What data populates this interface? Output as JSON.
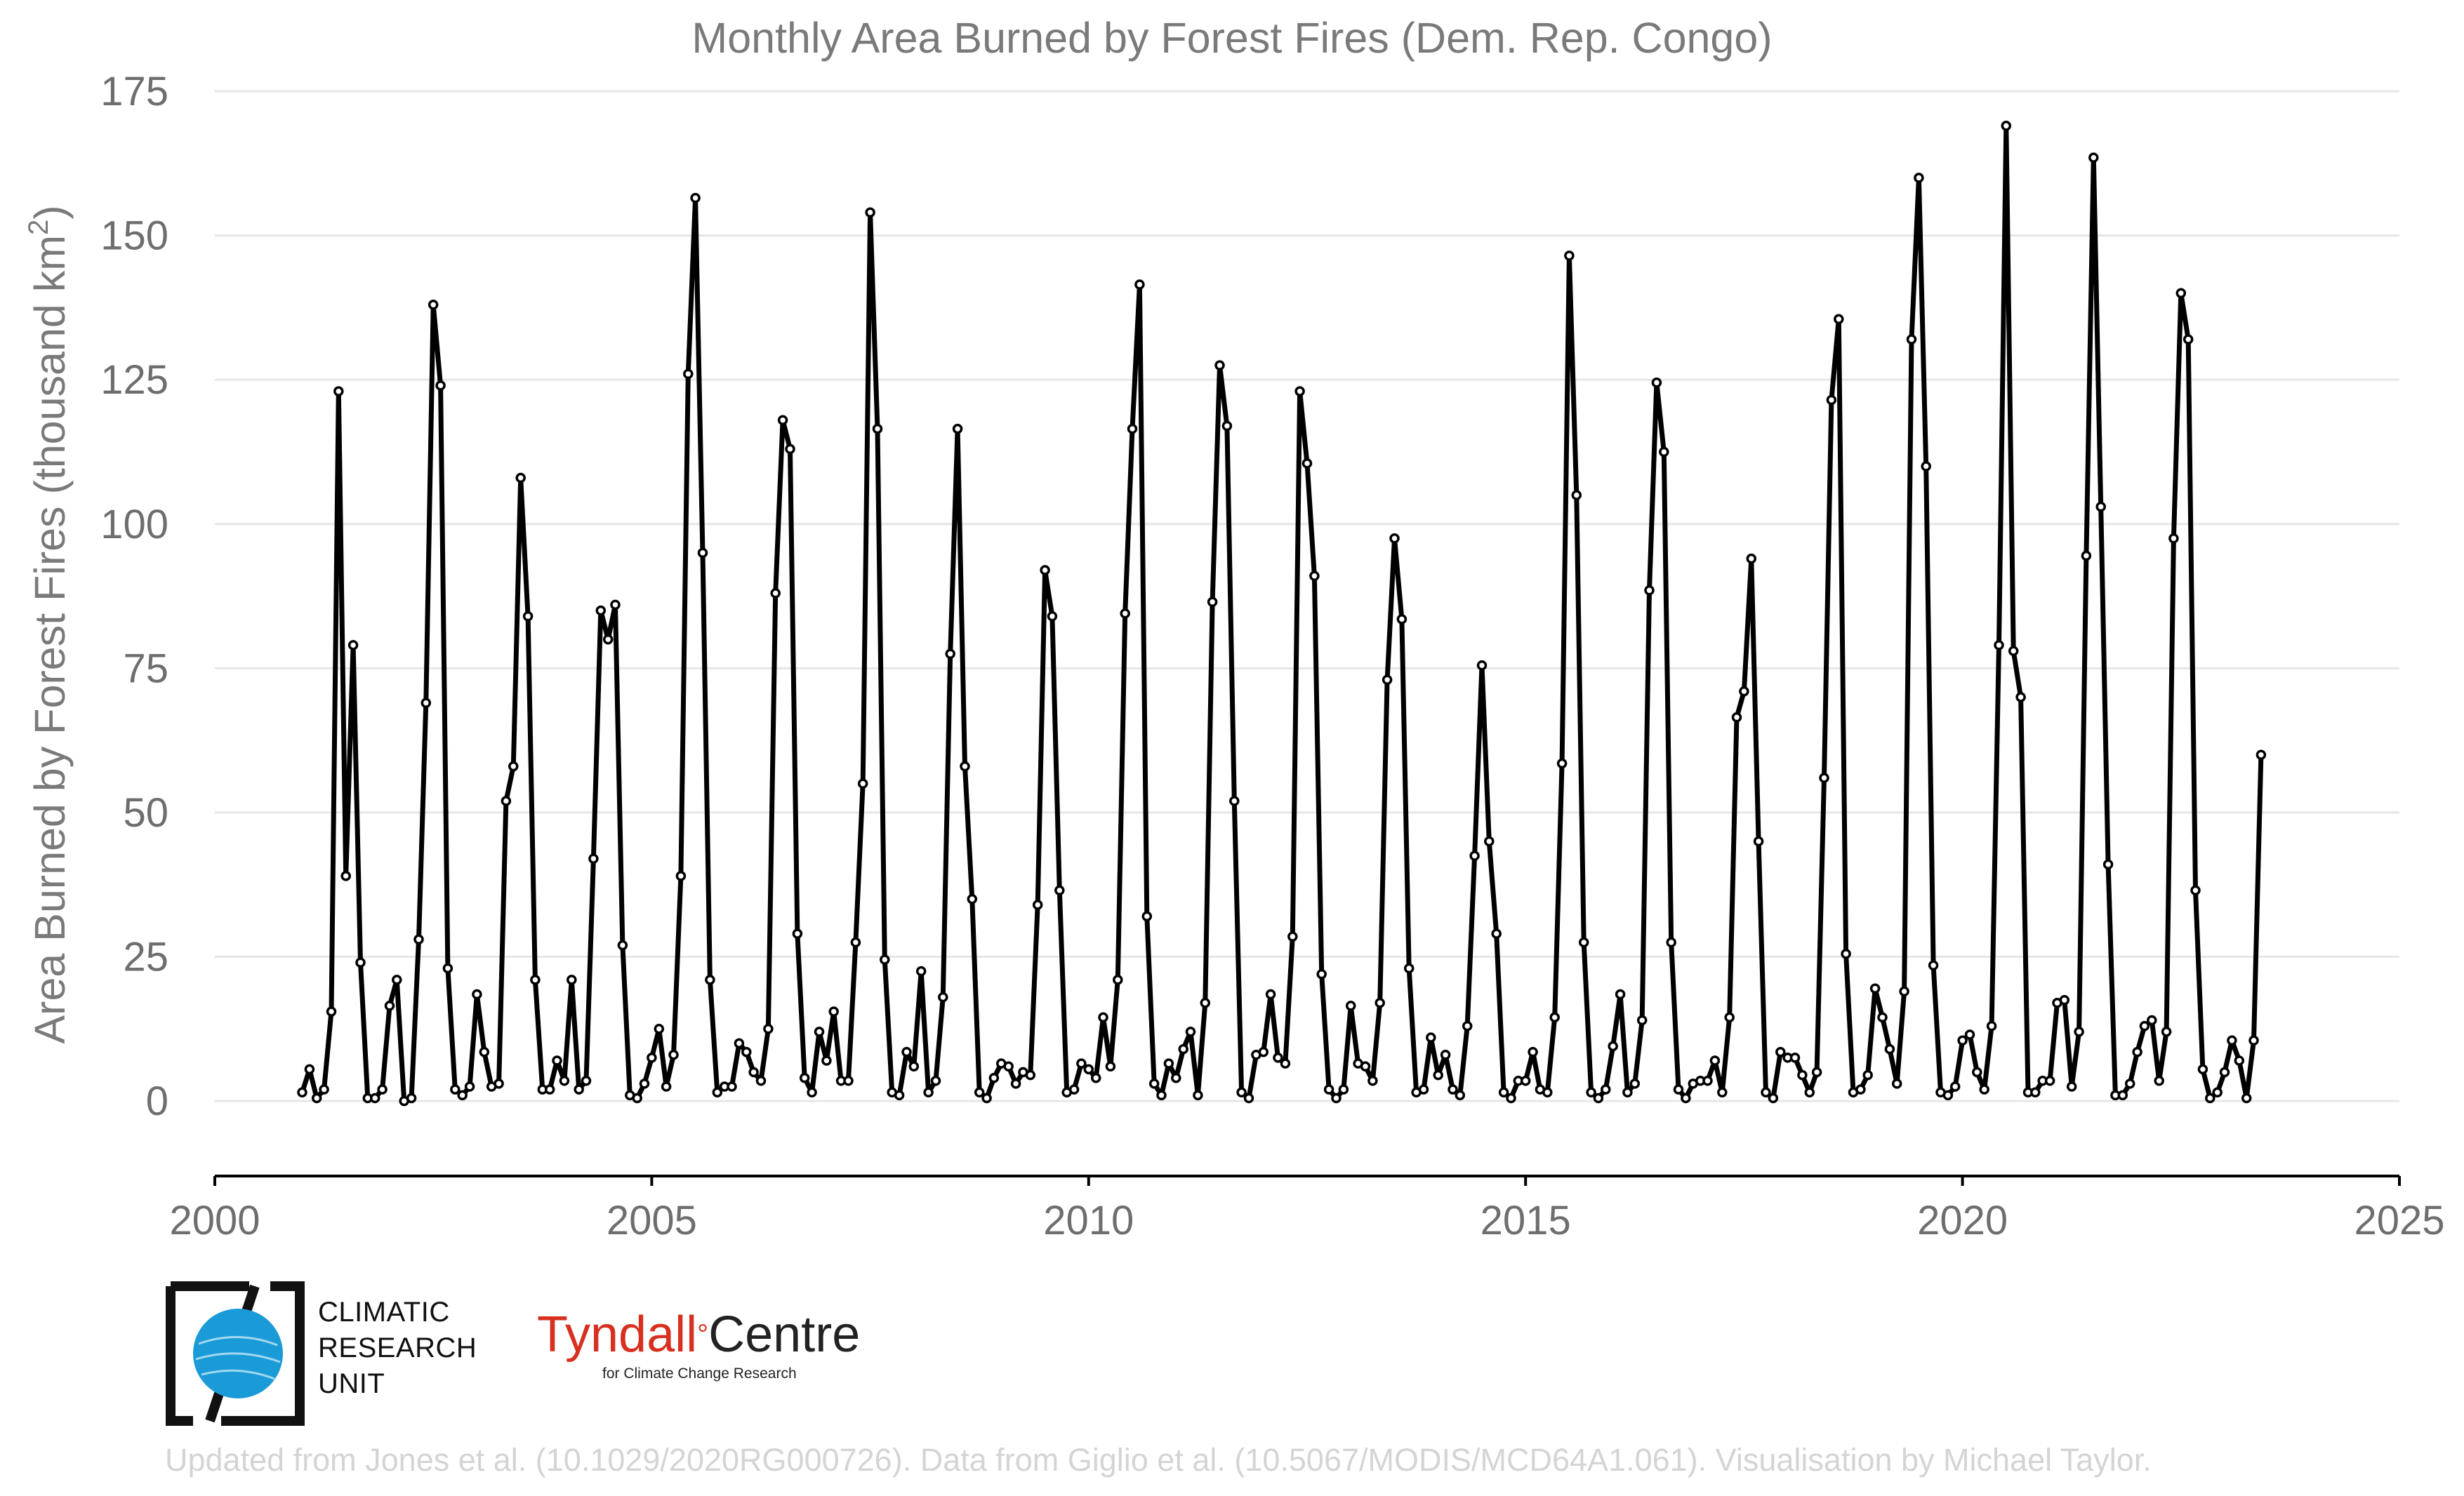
{
  "chart_data": {
    "type": "line",
    "title": "Monthly Area Burned by Forest Fires (Dem. Rep. Congo)",
    "xlabel": "",
    "ylabel_main": "Area Burned by Forest Fires (thousand km",
    "ylabel_sup": "2",
    "ylabel_end": ")",
    "xlim": [
      2000,
      2025
    ],
    "ylim": [
      -13,
      175
    ],
    "xticks": [
      "2000",
      "2005",
      "2010",
      "2015",
      "2020",
      "2025"
    ],
    "yticks": [
      "0",
      "25",
      "50",
      "75",
      "100",
      "125",
      "150",
      "175"
    ],
    "x_start": "2001-01",
    "x_step": "1 month",
    "grid": "horizontal",
    "line_color": "#000000",
    "marker_fill": "#ffffff",
    "values": [
      1.5,
      5.5,
      0.5,
      2,
      15.5,
      123,
      39,
      79,
      24,
      0.5,
      0.5,
      2,
      16.5,
      21,
      0,
      0.5,
      28,
      69,
      138,
      124,
      23,
      2,
      1,
      2.5,
      18.5,
      8.5,
      2.5,
      3,
      52,
      58,
      108,
      84,
      21,
      2,
      2,
      7,
      3.5,
      21,
      2,
      3.5,
      42,
      85,
      80,
      86,
      27,
      1,
      0.5,
      3,
      7.5,
      12.5,
      2.5,
      8,
      39,
      126,
      156.5,
      95,
      21,
      1.5,
      2.5,
      2.5,
      10,
      8.5,
      5,
      3.5,
      12.5,
      88,
      118,
      113,
      29,
      4,
      1.5,
      12,
      7,
      15.5,
      3.5,
      3.5,
      27.5,
      55,
      154,
      116.5,
      24.5,
      1.5,
      1,
      8.5,
      6,
      22.5,
      1.5,
      3.5,
      18,
      77.5,
      116.5,
      58,
      35,
      1.5,
      0.5,
      4,
      6.5,
      6,
      3,
      5,
      4.5,
      34,
      92,
      84,
      36.5,
      1.5,
      2,
      6.5,
      5.5,
      4,
      14.5,
      6,
      21,
      84.5,
      116.5,
      141.5,
      32,
      3,
      1,
      6.5,
      4,
      9,
      12,
      1,
      17,
      86.5,
      127.5,
      117,
      52,
      1.5,
      0.5,
      8,
      8.5,
      18.5,
      7.5,
      6.5,
      28.5,
      123,
      110.5,
      91,
      22,
      2,
      0.5,
      2,
      16.5,
      6.5,
      6,
      3.5,
      17,
      73,
      97.5,
      83.5,
      23,
      1.5,
      2,
      11,
      4.5,
      8,
      2,
      1,
      13,
      42.5,
      75.5,
      45,
      29,
      1.5,
      0.5,
      3.5,
      3.5,
      8.5,
      2,
      1.5,
      14.5,
      58.5,
      146.5,
      105,
      27.5,
      1.5,
      0.5,
      2,
      9.5,
      18.5,
      1.5,
      3,
      14,
      88.5,
      124.5,
      112.5,
      27.5,
      2,
      0.5,
      3,
      3.5,
      3.5,
      7,
      1.5,
      14.5,
      66.5,
      71,
      94,
      45,
      1.5,
      0.5,
      8.5,
      7.5,
      7.5,
      4.5,
      1.5,
      5,
      56,
      121.5,
      135.5,
      25.5,
      1.5,
      2,
      4.5,
      19.5,
      14.5,
      9,
      3,
      19,
      132,
      160,
      110,
      23.5,
      1.5,
      1,
      2.5,
      10.5,
      11.5,
      5,
      2,
      13,
      79,
      169,
      78,
      70,
      1.5,
      1.5,
      3.5,
      3.5,
      17,
      17.5,
      2.5,
      12,
      94.5,
      163.5,
      103,
      41,
      1,
      1,
      3,
      8.5,
      13,
      14,
      3.5,
      12,
      97.5,
      140,
      132,
      36.5,
      5.5,
      0.5,
      1.5,
      5,
      10.5,
      7,
      0.5,
      10.5,
      60
    ]
  },
  "logos": {
    "cru_lines": [
      "CLIMATIC",
      "RESEARCH",
      "UNIT"
    ],
    "tyndall_name": "Tyndall",
    "tyndall_degree": "°",
    "tyndall_centre": "Centre",
    "tyndall_sub": "for Climate Change Research",
    "cru_ring_color": "#1a9bd7"
  },
  "credits": "Updated from Jones et al. (10.1029/2020RG000726). Data from Giglio et al. (10.5067/MODIS/MCD64A1.061). Visualisation by Michael Taylor."
}
